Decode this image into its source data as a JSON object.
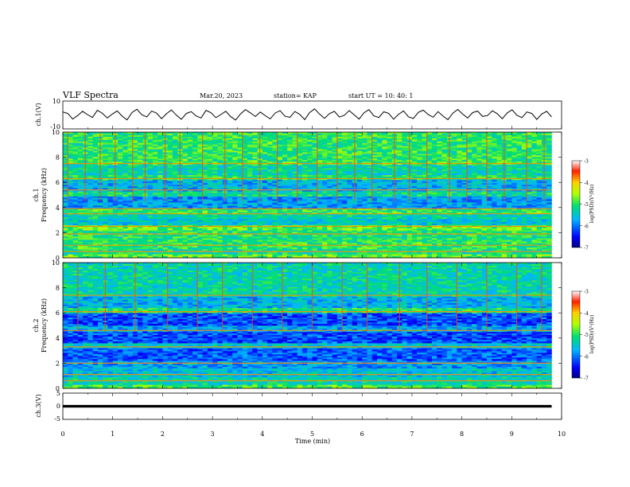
{
  "header": {
    "title": "VLF Spectra",
    "date": "Mar.20, 2023",
    "station": "station= KAP",
    "start": "start UT = 10: 40: 1"
  },
  "chart_data": [
    {
      "type": "line",
      "name": "ch1-waveform",
      "ylabel": "ch.1(V)",
      "ylim": [
        -10,
        10
      ],
      "y_ticks": [
        "10",
        "-10"
      ],
      "x_range": [
        0,
        10
      ],
      "color": "#000000",
      "trace": [
        2.2,
        1.1,
        -2.9,
        -0.4,
        2.6,
        0.3,
        -1.8,
        3.4,
        1.2,
        -2.1,
        0.6,
        2.9,
        -0.8,
        -3.5,
        1.7,
        4.1,
        0.2,
        -1.4,
        2.8,
        1.3,
        -2.6,
        0.9,
        3.6,
        -0.2,
        -3.1,
        1.1,
        2.4,
        -0.7,
        -2.2,
        3.3,
        1.6,
        -1.9,
        0.3,
        2.7,
        -1.2,
        -3.6,
        0.8,
        3.9,
        1.5,
        -1.1,
        2.1,
        -0.5,
        -2.8,
        1.4,
        3.1,
        -0.9,
        -1.7,
        2.5,
        0.4,
        -3.3,
        1.8,
        4.4,
        0.7,
        -2.4,
        1.0,
        2.6,
        -1.5,
        -0.3,
        3.2,
        0.1,
        -2.9,
        1.6,
        3.8,
        -0.6,
        -1.8,
        2.3,
        1.2,
        -3.0,
        0.5,
        2.9,
        -1.3,
        -2.5,
        1.9,
        3.5,
        0.3,
        -1.6,
        2.4,
        -0.8,
        -3.4,
        1.3,
        4.0,
        0.6,
        -2.2,
        1.7,
        2.8,
        -1.0,
        -0.4,
        3.0,
        0.9,
        -2.7,
        1.5,
        3.7,
        -0.3,
        -1.9,
        2.2,
        1.1,
        -3.2,
        0.7,
        2.6,
        -1.4
      ]
    },
    {
      "type": "heatmap",
      "name": "ch1-spectrogram",
      "ylabel": "ch.1\nFrequency (kHz)",
      "ylim": [
        0,
        10
      ],
      "y_ticks": [
        "0",
        "2",
        "4",
        "6",
        "8",
        "10"
      ],
      "x_range": [
        0,
        9.8
      ],
      "colorbar": {
        "label": "log(PSD)(V²/Hz)",
        "range": [
          -7,
          -3
        ],
        "ticks": [
          "-3",
          "-4",
          "-5",
          "-6",
          "-7"
        ]
      },
      "bands": [
        {
          "f0": 0.0,
          "f1": 0.3,
          "level": 0.55
        },
        {
          "f0": 0.3,
          "f1": 0.7,
          "level": 0.45
        },
        {
          "f0": 0.7,
          "f1": 1.3,
          "level": 0.5
        },
        {
          "f0": 1.3,
          "f1": 2.2,
          "level": 0.48
        },
        {
          "f0": 2.2,
          "f1": 2.6,
          "level": 0.55
        },
        {
          "f0": 2.6,
          "f1": 3.1,
          "level": 0.38
        },
        {
          "f0": 3.1,
          "f1": 3.5,
          "level": 0.42
        },
        {
          "f0": 3.5,
          "f1": 3.9,
          "level": 0.5
        },
        {
          "f0": 3.9,
          "f1": 4.9,
          "level": 0.3
        },
        {
          "f0": 4.9,
          "f1": 5.3,
          "level": 0.45
        },
        {
          "f0": 5.3,
          "f1": 6.2,
          "level": 0.33
        },
        {
          "f0": 6.2,
          "f1": 6.6,
          "level": 0.48
        },
        {
          "f0": 6.6,
          "f1": 7.4,
          "level": 0.42
        },
        {
          "f0": 7.4,
          "f1": 10.0,
          "level": 0.5
        }
      ],
      "lines": [
        0.5,
        1.0,
        1.9,
        2.5,
        3.5,
        3.9,
        5.4,
        6.3,
        7.5
      ],
      "bursts": [
        0.1,
        0.45,
        0.75,
        1.05,
        1.4,
        1.65,
        2.05,
        2.35,
        2.8,
        3.25,
        3.6,
        3.95,
        4.3,
        4.7,
        5.1,
        5.5,
        5.85,
        6.2,
        6.65,
        6.95,
        7.3,
        7.75,
        8.1,
        8.5,
        8.85,
        9.3,
        9.65
      ]
    },
    {
      "type": "heatmap",
      "name": "ch2-spectrogram",
      "ylabel": "ch.2\nFrequency (kHz)",
      "ylim": [
        0,
        10
      ],
      "y_ticks": [
        "0",
        "2",
        "4",
        "6",
        "8",
        "10"
      ],
      "x_range": [
        0,
        9.8
      ],
      "colorbar": {
        "label": "log(PSD)(V²/Hz)",
        "range": [
          -7,
          -3
        ],
        "ticks": [
          "-3",
          "-4",
          "-5",
          "-6",
          "-7"
        ]
      },
      "bands": [
        {
          "f0": 0.0,
          "f1": 0.3,
          "level": 0.52
        },
        {
          "f0": 0.3,
          "f1": 0.9,
          "level": 0.42
        },
        {
          "f0": 0.9,
          "f1": 1.6,
          "level": 0.36
        },
        {
          "f0": 1.6,
          "f1": 2.2,
          "level": 0.3
        },
        {
          "f0": 2.2,
          "f1": 3.2,
          "level": 0.22
        },
        {
          "f0": 3.2,
          "f1": 3.6,
          "level": 0.38
        },
        {
          "f0": 3.6,
          "f1": 4.5,
          "level": 0.2
        },
        {
          "f0": 4.5,
          "f1": 5.0,
          "level": 0.32
        },
        {
          "f0": 5.0,
          "f1": 6.0,
          "level": 0.2
        },
        {
          "f0": 6.0,
          "f1": 6.4,
          "level": 0.48
        },
        {
          "f0": 6.4,
          "f1": 7.3,
          "level": 0.33
        },
        {
          "f0": 7.3,
          "f1": 10.0,
          "level": 0.42
        }
      ],
      "lines": [
        0.6,
        1.1,
        2.0,
        3.3,
        4.6,
        6.1,
        7.4
      ],
      "bursts": [
        0.3,
        0.85,
        1.45,
        2.1,
        2.7,
        3.2,
        3.8,
        4.4,
        5.0,
        5.6,
        6.1,
        6.75,
        7.3,
        7.9,
        8.5,
        9.1,
        9.6
      ]
    },
    {
      "type": "line",
      "name": "ch3-waveform",
      "ylabel": "ch.3(V)",
      "ylim": [
        -5,
        5
      ],
      "y_ticks": [
        "5",
        "0",
        "-5"
      ],
      "x_range": [
        0,
        10
      ],
      "level": 0,
      "thickness_v": 1.0,
      "color": "#000000"
    }
  ],
  "x_axis": {
    "label": "Time (min)",
    "range": [
      0,
      10
    ],
    "ticks": [
      "0",
      "1",
      "2",
      "3",
      "4",
      "5",
      "6",
      "7",
      "8",
      "9",
      "10"
    ]
  }
}
